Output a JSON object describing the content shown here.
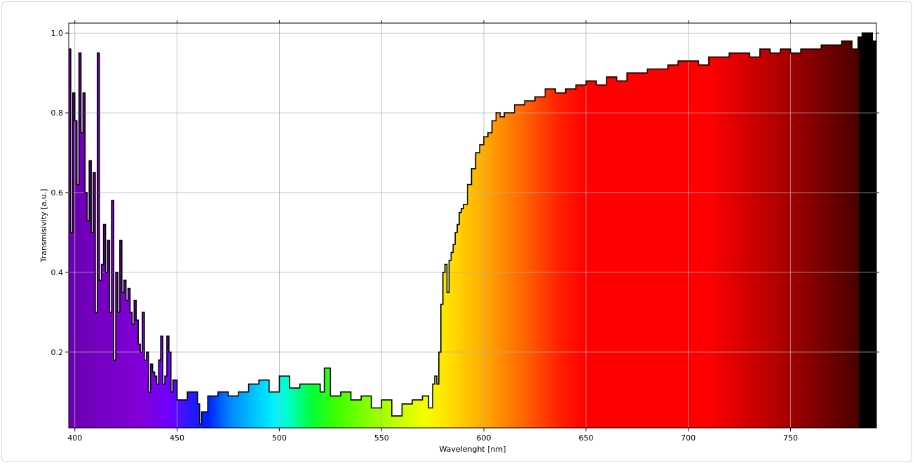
{
  "chart_data": {
    "type": "area",
    "title": "",
    "xlabel": "Wavelenght [nm]",
    "ylabel": "Transmisivity [a.u.]",
    "xlim": [
      397,
      792
    ],
    "ylim": [
      0.01,
      1.025
    ],
    "x_ticks": [
      400,
      450,
      500,
      550,
      600,
      650,
      700,
      750
    ],
    "y_ticks": [
      0.2,
      0.4,
      0.6,
      0.8,
      1.0
    ],
    "x_tick_labels": [
      "400",
      "450",
      "500",
      "550",
      "600",
      "650",
      "700",
      "750"
    ],
    "y_tick_labels": [
      "0.2",
      "0.4",
      "0.6",
      "0.8",
      "1.0"
    ],
    "grid": true,
    "fill": "visible-spectrum gradient under curve",
    "line_color": "#000000",
    "series": [
      {
        "x": [
          397,
          398,
          399,
          400,
          401,
          402,
          403,
          404,
          405,
          406,
          407,
          408,
          409,
          410,
          411,
          412,
          413,
          414,
          415,
          416,
          417,
          418,
          419,
          420,
          421,
          422,
          423,
          424,
          425,
          426,
          427,
          428,
          429,
          430,
          431,
          432,
          433,
          434,
          435,
          436,
          437,
          438,
          439,
          440,
          441,
          442,
          443,
          444,
          445,
          446,
          447,
          448,
          450,
          455,
          460,
          461,
          462,
          465,
          470,
          475,
          480,
          485,
          490,
          495,
          500,
          505,
          510,
          515,
          520,
          522,
          525,
          530,
          535,
          540,
          545,
          550,
          555,
          560,
          565,
          570,
          573,
          575,
          576,
          577,
          578,
          579,
          580,
          581,
          582,
          583,
          584,
          585,
          586,
          587,
          588,
          589,
          590,
          592,
          594,
          596,
          598,
          600,
          602,
          604,
          606,
          608,
          610,
          615,
          620,
          625,
          630,
          635,
          640,
          645,
          650,
          655,
          660,
          665,
          670,
          675,
          680,
          685,
          690,
          695,
          700,
          705,
          710,
          715,
          720,
          725,
          730,
          735,
          740,
          745,
          750,
          755,
          760,
          765,
          770,
          775,
          780,
          783,
          785,
          788,
          790,
          792
        ],
        "y": [
          0.96,
          0.5,
          0.85,
          0.78,
          0.62,
          0.95,
          0.75,
          0.85,
          0.6,
          0.53,
          0.68,
          0.5,
          0.65,
          0.3,
          0.95,
          0.38,
          0.42,
          0.52,
          0.4,
          0.48,
          0.3,
          0.58,
          0.18,
          0.4,
          0.3,
          0.48,
          0.35,
          0.38,
          0.33,
          0.36,
          0.3,
          0.27,
          0.33,
          0.28,
          0.22,
          0.2,
          0.3,
          0.18,
          0.2,
          0.1,
          0.17,
          0.15,
          0.14,
          0.12,
          0.18,
          0.24,
          0.12,
          0.14,
          0.24,
          0.2,
          0.1,
          0.13,
          0.08,
          0.1,
          0.07,
          0.02,
          0.05,
          0.09,
          0.1,
          0.09,
          0.1,
          0.12,
          0.13,
          0.1,
          0.14,
          0.11,
          0.12,
          0.12,
          0.1,
          0.16,
          0.09,
          0.1,
          0.08,
          0.09,
          0.06,
          0.08,
          0.04,
          0.07,
          0.08,
          0.09,
          0.06,
          0.12,
          0.14,
          0.12,
          0.2,
          0.32,
          0.4,
          0.42,
          0.35,
          0.43,
          0.45,
          0.47,
          0.5,
          0.52,
          0.55,
          0.56,
          0.57,
          0.62,
          0.66,
          0.7,
          0.72,
          0.74,
          0.75,
          0.78,
          0.8,
          0.79,
          0.8,
          0.82,
          0.83,
          0.84,
          0.86,
          0.85,
          0.86,
          0.87,
          0.88,
          0.87,
          0.89,
          0.88,
          0.9,
          0.9,
          0.91,
          0.91,
          0.92,
          0.93,
          0.93,
          0.92,
          0.94,
          0.94,
          0.95,
          0.95,
          0.94,
          0.96,
          0.95,
          0.96,
          0.95,
          0.96,
          0.96,
          0.97,
          0.97,
          0.98,
          0.96,
          0.99,
          1.0,
          1.0,
          0.98,
          1.0
        ]
      }
    ]
  }
}
